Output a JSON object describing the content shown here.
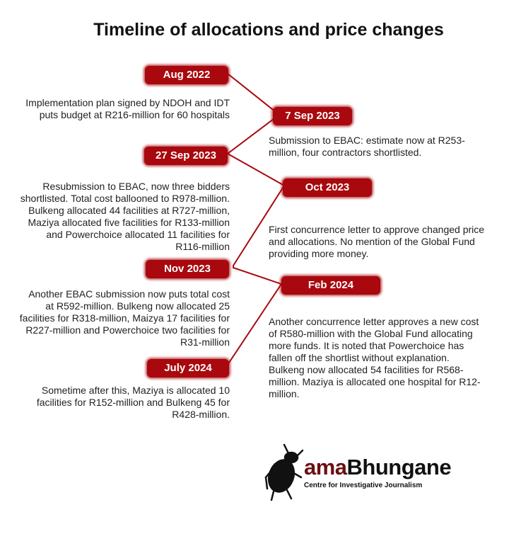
{
  "title": "Timeline of allocations and price changes",
  "accent_color": "#a8080e",
  "events": [
    {
      "date": "Aug 2022",
      "text": "Implementation plan signed by NDOH and IDT puts budget at R216-million for 60 hospitals"
    },
    {
      "date": "7 Sep 2023",
      "text": "Submission to EBAC: estimate now at R253-million, four contractors shortlisted."
    },
    {
      "date": "27 Sep 2023",
      "text": "Resubmission to EBAC, now three bidders shortlisted. Total cost ballooned to R978-million. Bulkeng allocated 44 facilities at R727-million, Maziya allocated five facilities for R133-million and Powerchoice allocated 11 facilities for R116-million"
    },
    {
      "date": "Oct 2023",
      "text": "First concurrence letter to approve changed price and allocations. No mention of the Global Fund providing more money."
    },
    {
      "date": "Nov 2023",
      "text": "Another EBAC submission now puts total cost at R592-million. Bulkeng now allocated 25 facilities for R318-million, Maizya 17 facilities for R227-million and Powerchoice two facilities for R31-million"
    },
    {
      "date": "Feb 2024",
      "text": "Another concurrence letter approves a new cost of R580-million with the Global Fund allocating more funds. It is noted that Powerchoice has fallen off the shortlist without explanation. Bulkeng now allocated 54 facilities for R568-million. Maziya is allocated one hospital for R12-million."
    },
    {
      "date": "July 2024",
      "text": "Sometime after this, Maziya is allocated 10 facilities for R152-million and Bulkeng 45 for R428-million."
    }
  ],
  "logo": {
    "name_prefix": "ama",
    "name_suffix": "Bhungane",
    "tagline": "Centre for Investigative Journalism",
    "icon": "dung-beetle-icon"
  }
}
